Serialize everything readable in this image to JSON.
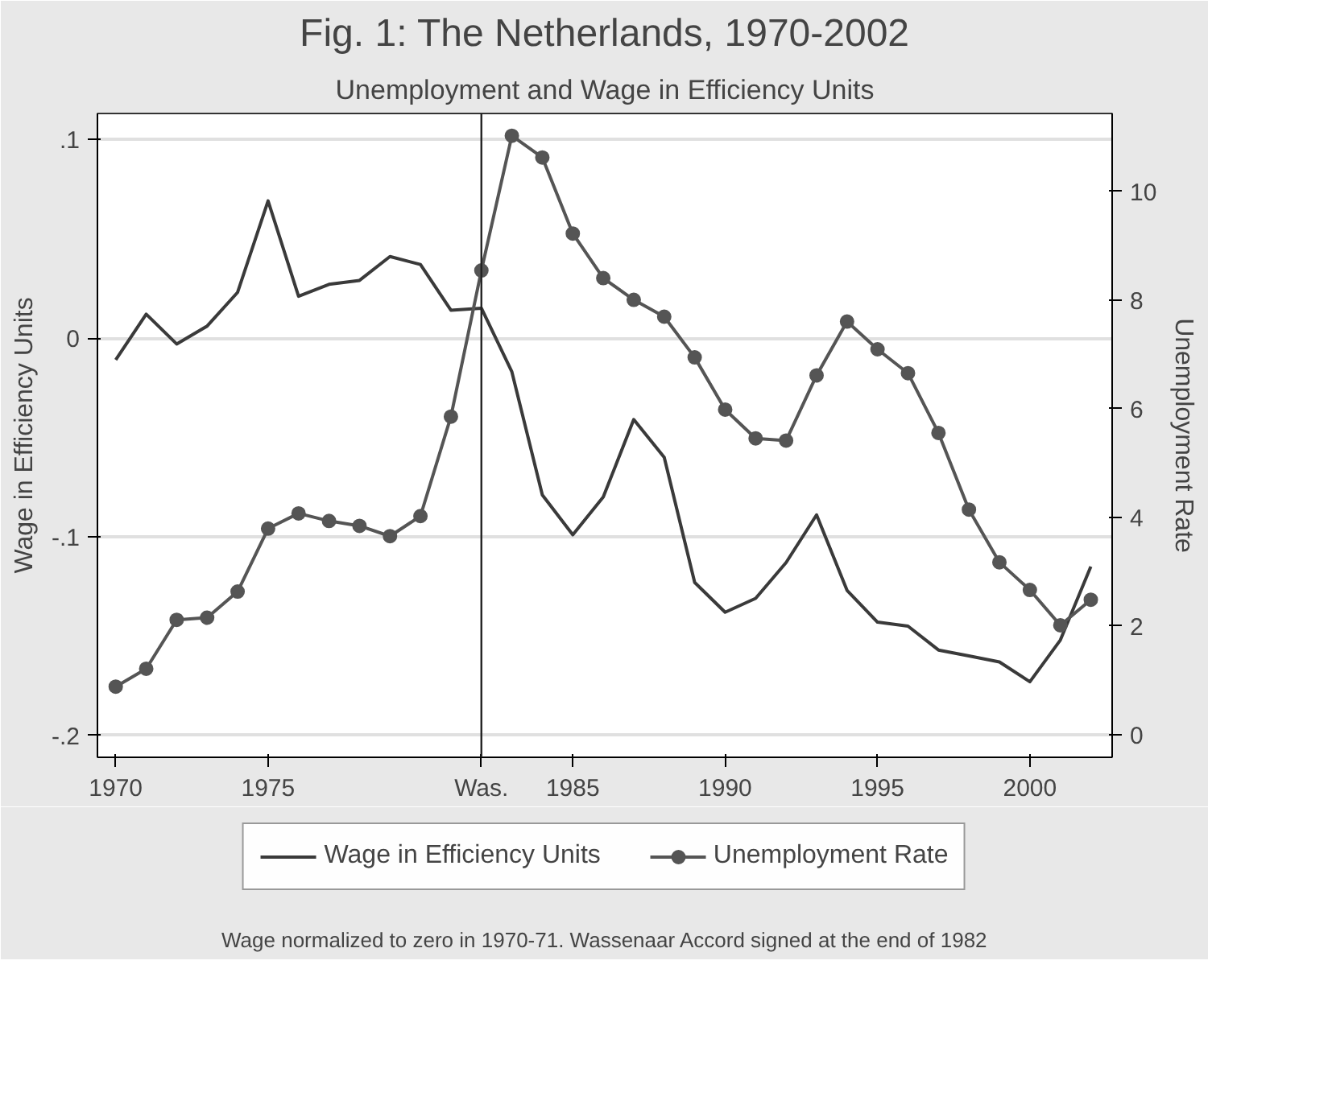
{
  "chart_data": {
    "type": "line",
    "title": "Fig. 1: The Netherlands, 1970-2002",
    "subtitle": "Unemployment and Wage in Efficiency Units",
    "ylabel": "Wage in Efficiency Units",
    "y2label": "Unemployment Rate",
    "x": [
      1970,
      1971,
      1972,
      1973,
      1974,
      1975,
      1976,
      1977,
      1978,
      1979,
      1980,
      1981,
      1982,
      1983,
      1984,
      1985,
      1986,
      1987,
      1988,
      1989,
      1990,
      1991,
      1992,
      1993,
      1994,
      1995,
      1996,
      1997,
      1998,
      1999,
      2000,
      2001,
      2002
    ],
    "series": [
      {
        "name": "Wage in Efficiency Units",
        "color": "#3a3a3a",
        "marker": "none",
        "values": [
          -0.011,
          0.012,
          -0.003,
          0.006,
          0.023,
          0.069,
          0.021,
          0.027,
          0.029,
          0.041,
          0.037,
          0.014,
          0.015,
          -0.017,
          -0.079,
          -0.099,
          -0.08,
          -0.041,
          -0.06,
          -0.123,
          -0.138,
          -0.131,
          -0.113,
          -0.089,
          -0.127,
          -0.143,
          -0.145,
          -0.157,
          -0.16,
          -0.163,
          -0.173,
          -0.152,
          -0.115
        ]
      },
      {
        "name": "Unemployment Rate",
        "color": "#555555",
        "marker": "circle",
        "axis": "y2",
        "values": [
          0.88,
          1.21,
          2.11,
          2.15,
          2.63,
          3.79,
          4.07,
          3.93,
          3.84,
          3.65,
          4.02,
          5.85,
          8.54,
          11.02,
          10.62,
          9.22,
          8.4,
          8.0,
          7.69,
          6.94,
          5.98,
          5.45,
          5.41,
          6.61,
          7.6,
          7.09,
          6.65,
          5.55,
          4.14,
          3.17,
          2.66,
          2.01,
          2.48
        ]
      }
    ],
    "xlim": [
      1969.4,
      2002.7
    ],
    "xticks": [
      1970,
      1975,
      {
        "value": 1982,
        "label": "Was."
      },
      1985,
      1990,
      1995,
      2000
    ],
    "ylim": [
      -0.211,
      0.113
    ],
    "yticks": [
      {
        "value": 0.1,
        "label": ".1"
      },
      0,
      {
        "value": -0.1,
        "label": "-.1"
      },
      {
        "value": -0.2,
        "label": "-.2"
      }
    ],
    "y2lim": [
      -0.42,
      11.43
    ],
    "y2ticks": [
      0,
      2,
      4,
      6,
      8,
      10
    ],
    "ref_lines": [
      {
        "axis": "x",
        "value": 1982,
        "label": null,
        "color": "#222222"
      }
    ],
    "grid": "y",
    "legend": "bottom",
    "line_style": "solid",
    "annotations": [
      "Wage normalized to zero in 1970-71. Wassenaar Accord signed at the end of 1982"
    ]
  }
}
